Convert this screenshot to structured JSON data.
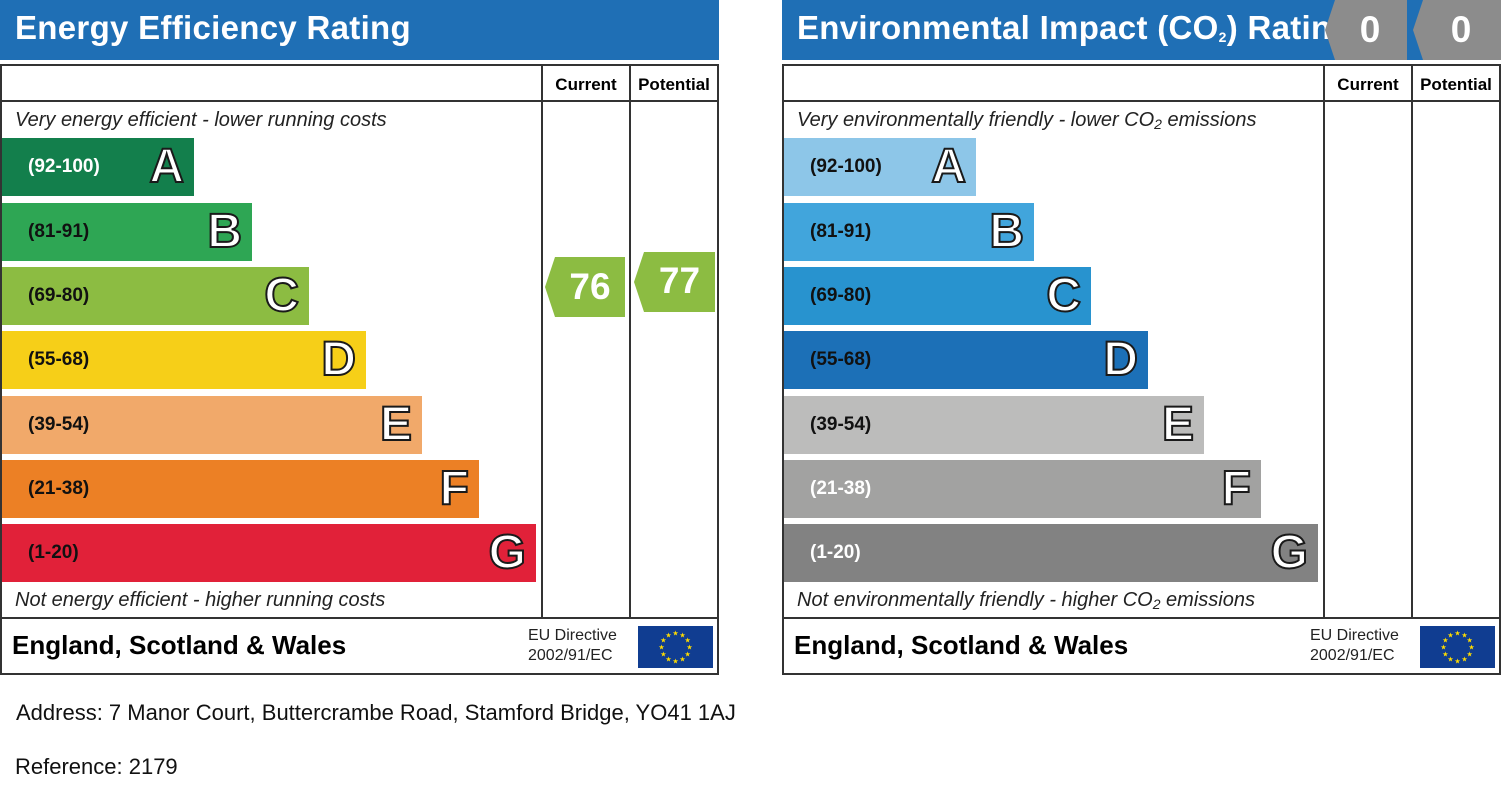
{
  "chart_data": [
    {
      "type": "bar",
      "title": "Energy Efficiency Rating",
      "columns": [
        "Current",
        "Potential"
      ],
      "top_caption": "Very energy efficient - lower running costs",
      "bottom_caption": "Not energy efficient - higher running costs",
      "categories": [
        "(92-100)",
        "(81-91)",
        "(69-80)",
        "(55-68)",
        "(39-54)",
        "(21-38)",
        "(1-20)"
      ],
      "letters": [
        "A",
        "B",
        "C",
        "D",
        "E",
        "F",
        "G"
      ],
      "colors": [
        "#137f4c",
        "#2ea654",
        "#8cbc42",
        "#f6cf18",
        "#f1a96a",
        "#ec8025",
        "#e12139"
      ],
      "current": 76,
      "potential": 77,
      "current_band": "C",
      "potential_band": "C",
      "arrow_color": "#8cbc42",
      "region": "England, Scotland & Wales",
      "eu_directive": "EU Directive",
      "eu_code": "2002/91/EC"
    },
    {
      "type": "bar",
      "title": "Environmental Impact (CO₂) Rating",
      "columns": [
        "Current",
        "Potential"
      ],
      "top_caption_pre": "Very environmentally friendly - lower CO",
      "top_caption_sub": "2",
      "top_caption_post": " emissions",
      "bottom_caption_pre": "Not environmentally friendly - higher CO",
      "bottom_caption_sub": "2",
      "bottom_caption_post": " emissions",
      "categories": [
        "(92-100)",
        "(81-91)",
        "(69-80)",
        "(55-68)",
        "(39-54)",
        "(21-38)",
        "(1-20)"
      ],
      "letters": [
        "A",
        "B",
        "C",
        "D",
        "E",
        "F",
        "G"
      ],
      "colors": [
        "#8dc6e8",
        "#41a5dc",
        "#2893cf",
        "#1c70b7",
        "#bcbcbb",
        "#a2a2a1",
        "#828282"
      ],
      "current": 0,
      "potential": 0,
      "badge_color": "#8c8c8c",
      "region": "England, Scotland & Wales",
      "eu_directive": "EU Directive",
      "eu_code": "2002/91/EC"
    }
  ],
  "energy": {
    "title": "Energy Efficiency Rating"
  },
  "env": {
    "title_pre": "Environmental Impact (CO",
    "title_sub": "2",
    "title_post": ") Rating"
  },
  "info": {
    "address": "Address: 7 Manor Court, Buttercrambe Road, Stamford Bridge, YO41 1AJ",
    "reference": "Reference: 2179"
  }
}
